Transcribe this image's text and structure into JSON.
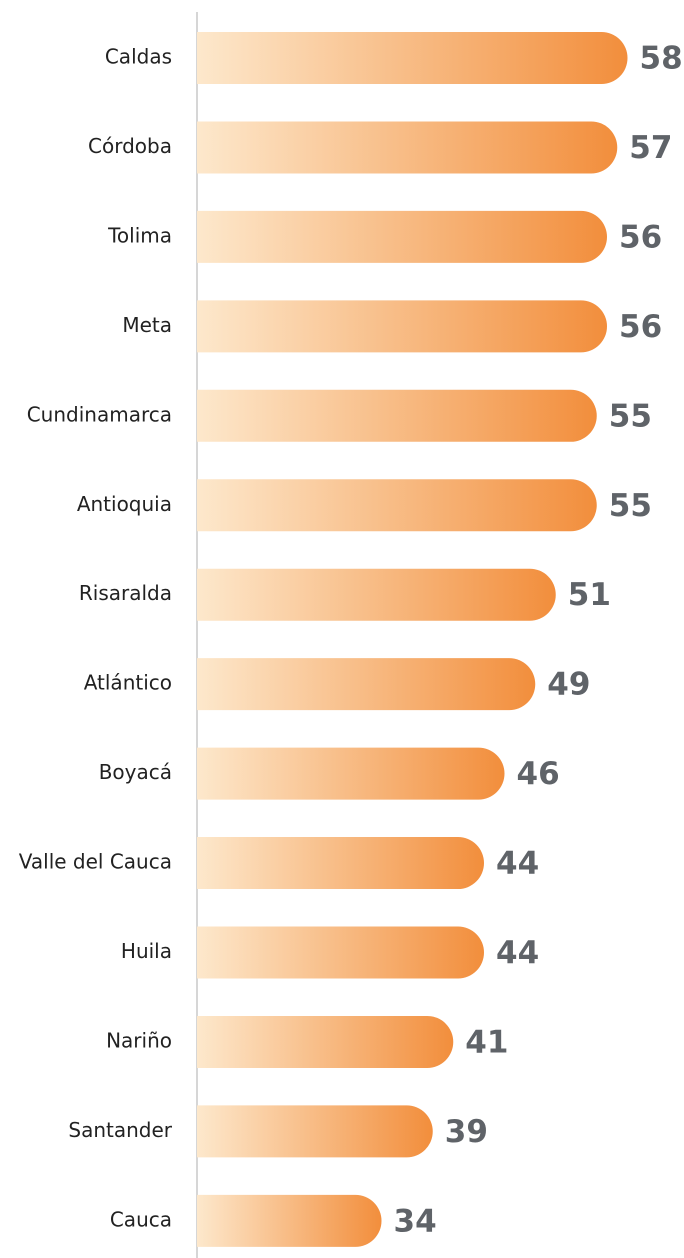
{
  "chart_data": {
    "type": "bar",
    "orientation": "horizontal",
    "categories": [
      "Caldas",
      "Córdoba",
      "Tolima",
      "Meta",
      "Cundinamarca",
      "Antioquia",
      "Risaralda",
      "Atlántico",
      "Boyacá",
      "Valle del Cauca",
      "Huila",
      "Nariño",
      "Santander",
      "Cauca"
    ],
    "values": [
      58,
      57,
      56,
      56,
      55,
      55,
      51,
      49,
      46,
      44,
      44,
      41,
      39,
      34
    ],
    "color": "#f28e3c",
    "color_start": "#fde8cc",
    "xlim": [
      16,
      63
    ]
  }
}
